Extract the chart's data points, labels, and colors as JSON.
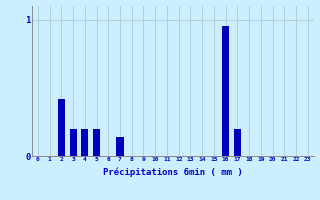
{
  "title": "",
  "xlabel": "Précipitations 6min ( mm )",
  "ylabel": "",
  "background_color": "#cceeff",
  "bar_color": "#0000bb",
  "grid_color": "#aacccc",
  "axis_label_color": "#0000cc",
  "ylim": [
    0,
    1.1
  ],
  "yticks": [
    0,
    1
  ],
  "num_hours": 24,
  "values": [
    0,
    0,
    0.42,
    0.2,
    0.2,
    0.2,
    0,
    0.14,
    0,
    0,
    0,
    0,
    0,
    0,
    0,
    0,
    0.95,
    0.2,
    0,
    0,
    0,
    0,
    0,
    0
  ]
}
